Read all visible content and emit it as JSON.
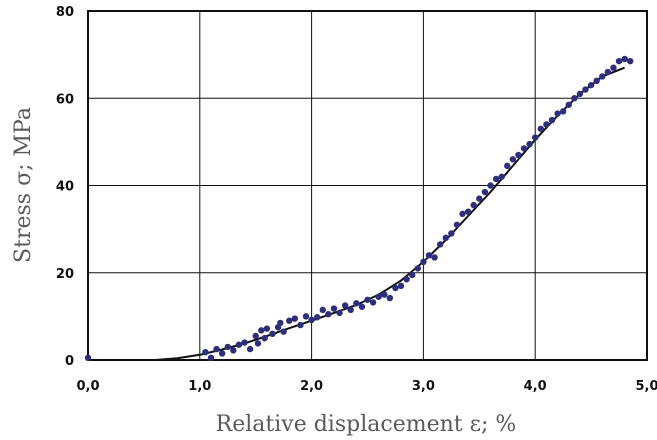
{
  "chart_data": {
    "type": "scatter",
    "title": "",
    "xlabel": "Relative displacement ε; %",
    "ylabel": "Stress σ; MPa",
    "xlim": [
      0,
      5
    ],
    "ylim": [
      0,
      80
    ],
    "x_ticks": [
      0,
      1,
      2,
      3,
      4,
      5
    ],
    "x_tick_labels": [
      "0,0",
      "1,0",
      "2,0",
      "3,0",
      "4,0",
      "5,0"
    ],
    "y_ticks": [
      0,
      20,
      40,
      60,
      80
    ],
    "y_tick_labels": [
      "0",
      "20",
      "40",
      "60",
      "80"
    ],
    "grid": true,
    "legend": "none",
    "colors": {
      "points": "#2e2e7a",
      "curve": "#111111",
      "grid": "#111111"
    },
    "series": [
      {
        "kind": "points",
        "x": [
          0.0,
          1.05,
          1.1,
          1.15,
          1.2,
          1.25,
          1.3,
          1.35,
          1.4,
          1.45,
          1.5,
          1.52,
          1.55,
          1.58,
          1.6,
          1.65,
          1.7,
          1.72,
          1.75,
          1.8,
          1.85,
          1.9,
          1.95,
          2.0,
          2.05,
          2.1,
          2.15,
          2.2,
          2.25,
          2.3,
          2.35,
          2.4,
          2.45,
          2.5,
          2.55,
          2.6,
          2.65,
          2.7,
          2.75,
          2.8,
          2.85,
          2.9,
          2.95,
          3.0,
          3.05,
          3.1,
          3.15,
          3.2,
          3.25,
          3.3,
          3.35,
          3.4,
          3.45,
          3.5,
          3.55,
          3.6,
          3.65,
          3.7,
          3.75,
          3.8,
          3.85,
          3.9,
          3.95,
          4.0,
          4.05,
          4.1,
          4.15,
          4.2,
          4.25,
          4.3,
          4.35,
          4.4,
          4.45,
          4.5,
          4.55,
          4.6,
          4.65,
          4.7,
          4.75,
          4.8,
          4.85
        ],
        "y": [
          0.5,
          1.8,
          0.5,
          2.5,
          1.5,
          3.0,
          2.2,
          3.5,
          4.0,
          2.5,
          5.5,
          3.8,
          6.8,
          5.0,
          7.2,
          6.0,
          7.5,
          8.5,
          6.5,
          9.0,
          9.5,
          8.0,
          10.0,
          9.2,
          9.8,
          11.5,
          10.5,
          11.8,
          10.8,
          12.5,
          11.5,
          13.0,
          12.2,
          13.8,
          13.2,
          14.5,
          15.0,
          14.2,
          16.5,
          17.0,
          18.5,
          19.5,
          21.0,
          22.5,
          24.0,
          23.5,
          26.5,
          28.0,
          29.0,
          31.0,
          33.5,
          34.0,
          35.5,
          37.0,
          38.5,
          40.0,
          41.5,
          42.0,
          44.5,
          46.0,
          47.0,
          48.5,
          49.5,
          51.0,
          53.0,
          54.0,
          55.0,
          56.5,
          57.0,
          58.5,
          60.0,
          61.0,
          62.0,
          63.0,
          64.0,
          65.0,
          66.0,
          67.0,
          68.5,
          69.0,
          68.5
        ]
      },
      {
        "kind": "curve",
        "x": [
          0.6,
          0.8,
          1.0,
          1.2,
          1.4,
          1.6,
          1.8,
          2.0,
          2.2,
          2.4,
          2.6,
          2.8,
          3.0,
          3.2,
          3.4,
          3.6,
          3.8,
          4.0,
          4.2,
          4.4,
          4.6,
          4.8
        ],
        "y": [
          0.0,
          0.4,
          1.2,
          2.4,
          3.8,
          5.5,
          7.3,
          9.0,
          10.8,
          12.6,
          15.0,
          18.2,
          22.5,
          27.5,
          33.0,
          38.5,
          44.5,
          50.5,
          56.0,
          61.0,
          65.0,
          67.0
        ]
      }
    ]
  }
}
